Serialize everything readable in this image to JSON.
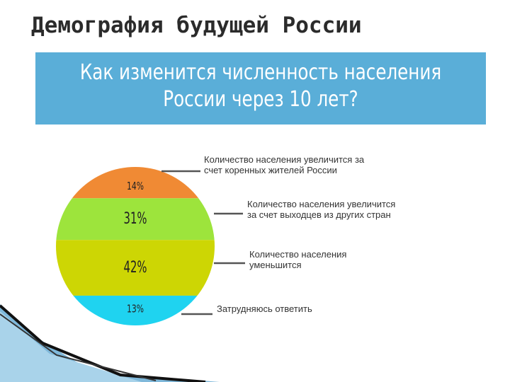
{
  "slide": {
    "title": "Демография будущей России"
  },
  "banner": {
    "line1": "Как изменится численность населения",
    "line2": "России через 10 лет?"
  },
  "colors": {
    "banner": "#5aaed8",
    "segments": [
      "#f08a34",
      "#9de43c",
      "#cdd604",
      "#1fd3f0"
    ],
    "leader": "#555555"
  },
  "chart_data": {
    "type": "pie",
    "title": "Как изменится численность населения России через 10 лет?",
    "categories": [
      "Количество населения увеличится за счет коренных жителей России",
      "Количество населения увеличится за счет выходцев из других стран",
      "Количество населения уменьшится",
      "Затрудняюсь ответить"
    ],
    "values": [
      14,
      31,
      42,
      13
    ],
    "value_labels": [
      "14%",
      "31%",
      "42%",
      "13%"
    ],
    "legend": [
      [
        "Количество населения увеличится за",
        "счет коренных жителей России"
      ],
      [
        "Количество населения увеличится",
        "за счет выходцев из других стран"
      ],
      [
        "Количество населения",
        "уменьшится"
      ],
      [
        "Затрудняюсь ответить"
      ]
    ]
  }
}
